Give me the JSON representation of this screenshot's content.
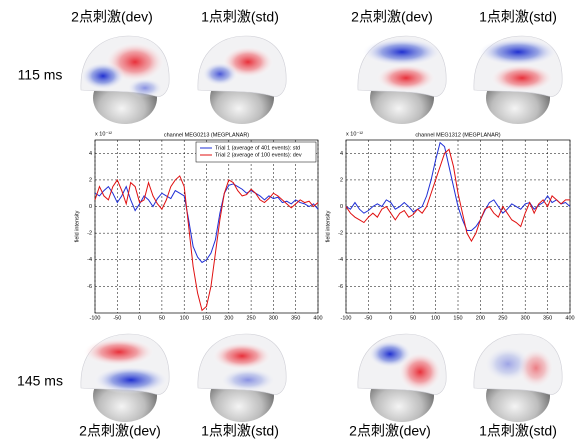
{
  "figure": {
    "top_labels": [
      "2点刺激(dev)",
      "1点刺激(std)",
      "2点刺激(dev)",
      "1点刺激(std)"
    ],
    "bottom_labels": [
      "2点刺激(dev)",
      "1点刺激(std)",
      "2点刺激(dev)",
      "1点刺激(std)"
    ],
    "row_labels": [
      "115 ms",
      "145 ms"
    ]
  },
  "chart_data": [
    {
      "type": "line",
      "title": "channel MEG0213 (MEGPLANAR)",
      "y_label": "field intensity",
      "y_scale_note": "x 10⁻¹²",
      "x": [
        -100,
        -90,
        -80,
        -70,
        -60,
        -50,
        -40,
        -30,
        -20,
        -10,
        0,
        10,
        20,
        30,
        40,
        50,
        60,
        70,
        80,
        90,
        100,
        110,
        120,
        130,
        140,
        150,
        160,
        170,
        180,
        190,
        200,
        210,
        220,
        230,
        240,
        250,
        260,
        270,
        280,
        290,
        300,
        310,
        320,
        330,
        340,
        350,
        360,
        370,
        380,
        390,
        400
      ],
      "series": [
        {
          "name": "Trial 1 (average of 401 events): std",
          "color": "#1f2fd6",
          "values": [
            1.0,
            0.8,
            1.2,
            1.5,
            1.0,
            0.3,
            0.8,
            1.5,
            0.5,
            -0.3,
            0.2,
            0.8,
            0.5,
            0,
            0.6,
            1.0,
            0.8,
            0.6,
            1.2,
            1.0,
            0.8,
            -1.0,
            -3.0,
            -3.8,
            -4.2,
            -4.0,
            -3.5,
            -2.5,
            -0.5,
            1.0,
            1.6,
            1.7,
            1.5,
            1.3,
            1.0,
            1.2,
            1.0,
            0.8,
            0.5,
            0.8,
            0.6,
            0.7,
            0.3,
            0.4,
            0.2,
            0.5,
            0.3,
            0.2,
            0,
            0.2,
            -0.2
          ]
        },
        {
          "name": "Trial 2 (average of 100 events): dev",
          "color": "#e01010",
          "values": [
            0.5,
            1.5,
            0.8,
            0.5,
            1.5,
            2.0,
            1.2,
            0.2,
            1.8,
            1.5,
            0.3,
            0.5,
            1.8,
            0.8,
            0.2,
            -0.2,
            0.5,
            1.5,
            2.0,
            2.3,
            1.5,
            -1.5,
            -4.5,
            -6.5,
            -7.8,
            -7.5,
            -6.0,
            -3.5,
            -1.0,
            1.0,
            2.0,
            1.8,
            1.2,
            0.8,
            0.9,
            1.3,
            1.0,
            0.5,
            0.3,
            0.6,
            1.0,
            0.8,
            0.5,
            0.2,
            -0.1,
            0.2,
            0.5,
            0.3,
            0.4,
            0,
            0.3
          ]
        }
      ],
      "xlim": [
        -100,
        400
      ],
      "xticks": [
        -100,
        -50,
        0,
        50,
        100,
        150,
        200,
        250,
        300,
        350,
        400
      ],
      "ylim": [
        -8,
        5
      ],
      "yticks": [
        -6,
        -4,
        -2,
        0,
        2,
        4
      ],
      "grid": true,
      "legend": "top-right"
    },
    {
      "type": "line",
      "title": "channel MEG1312 (MEGPLANAR)",
      "y_label": "field intensity",
      "y_scale_note": "x 10⁻¹²",
      "x": [
        -100,
        -90,
        -80,
        -70,
        -60,
        -50,
        -40,
        -30,
        -20,
        -10,
        0,
        10,
        20,
        30,
        40,
        50,
        60,
        70,
        80,
        90,
        100,
        110,
        120,
        130,
        140,
        150,
        160,
        170,
        180,
        190,
        200,
        210,
        220,
        230,
        240,
        250,
        260,
        270,
        280,
        290,
        300,
        310,
        320,
        330,
        340,
        350,
        360,
        370,
        380,
        390,
        400
      ],
      "series": [
        {
          "color": "#1f2fd6",
          "values": [
            0,
            -0.2,
            0.3,
            -0.2,
            -0.5,
            -0.3,
            0,
            0.2,
            0,
            0.5,
            0.3,
            -0.2,
            0,
            0.3,
            0,
            -0.4,
            -0.2,
            0,
            0.8,
            2.0,
            3.5,
            4.8,
            4.5,
            3.0,
            1.5,
            0,
            -1.0,
            -1.8,
            -1.8,
            -1.5,
            -1.0,
            -0.3,
            0.3,
            0.5,
            0,
            -0.5,
            -0.2,
            0.2,
            0,
            -0.2,
            0.2,
            0.3,
            -0.2,
            0.1,
            0.3,
            0.8,
            0.3,
            0.5,
            0.2,
            0.3,
            0
          ]
        },
        {
          "color": "#e01010",
          "values": [
            0,
            -0.5,
            -0.8,
            -1.0,
            -1.2,
            -0.8,
            -0.5,
            -0.8,
            -0.2,
            0,
            -0.5,
            -1.0,
            -0.5,
            -0.3,
            -0.8,
            -0.6,
            -0.2,
            -0.5,
            0,
            1.0,
            2.0,
            3.0,
            4.0,
            4.3,
            3.0,
            1.0,
            -0.5,
            -2.0,
            -2.6,
            -2.0,
            -1.0,
            -0.2,
            0,
            -0.5,
            -0.8,
            0,
            -0.5,
            -1.0,
            -1.2,
            -1.5,
            -0.5,
            0.3,
            -0.5,
            0.2,
            0.5,
            0,
            0.8,
            0.5,
            0.2,
            0.5,
            0.5
          ]
        }
      ],
      "xlim": [
        -100,
        400
      ],
      "xticks": [
        -100,
        -50,
        0,
        50,
        100,
        150,
        200,
        250,
        300,
        350,
        400
      ],
      "ylim": [
        -8,
        5
      ],
      "yticks": [
        -6,
        -4,
        -2,
        0,
        2,
        4
      ],
      "grid": true
    }
  ]
}
